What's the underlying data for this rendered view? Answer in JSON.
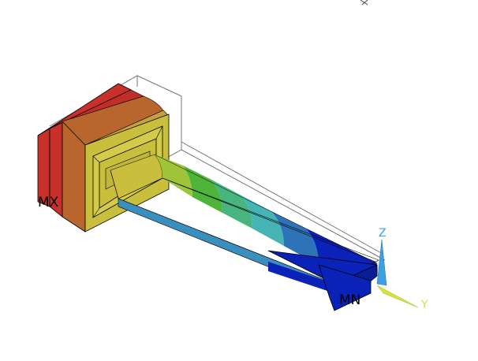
{
  "viewport": {
    "background": "#ffffff",
    "labels": {
      "max": "MX",
      "min": "MN"
    },
    "triad": {
      "z_label": "Z",
      "y_label": "Y",
      "z_color": "#3fa0e0",
      "y_color": "#d8e23a"
    },
    "contour_colors": [
      "#c8302a",
      "#b66a2a",
      "#c9bf3d",
      "#99c43a",
      "#4fb43a",
      "#48b480",
      "#46b4b4",
      "#2e72b8",
      "#0a22b8"
    ],
    "element_edge_color": "#000000",
    "undeformed_outline_color": "#7a7a7a"
  }
}
